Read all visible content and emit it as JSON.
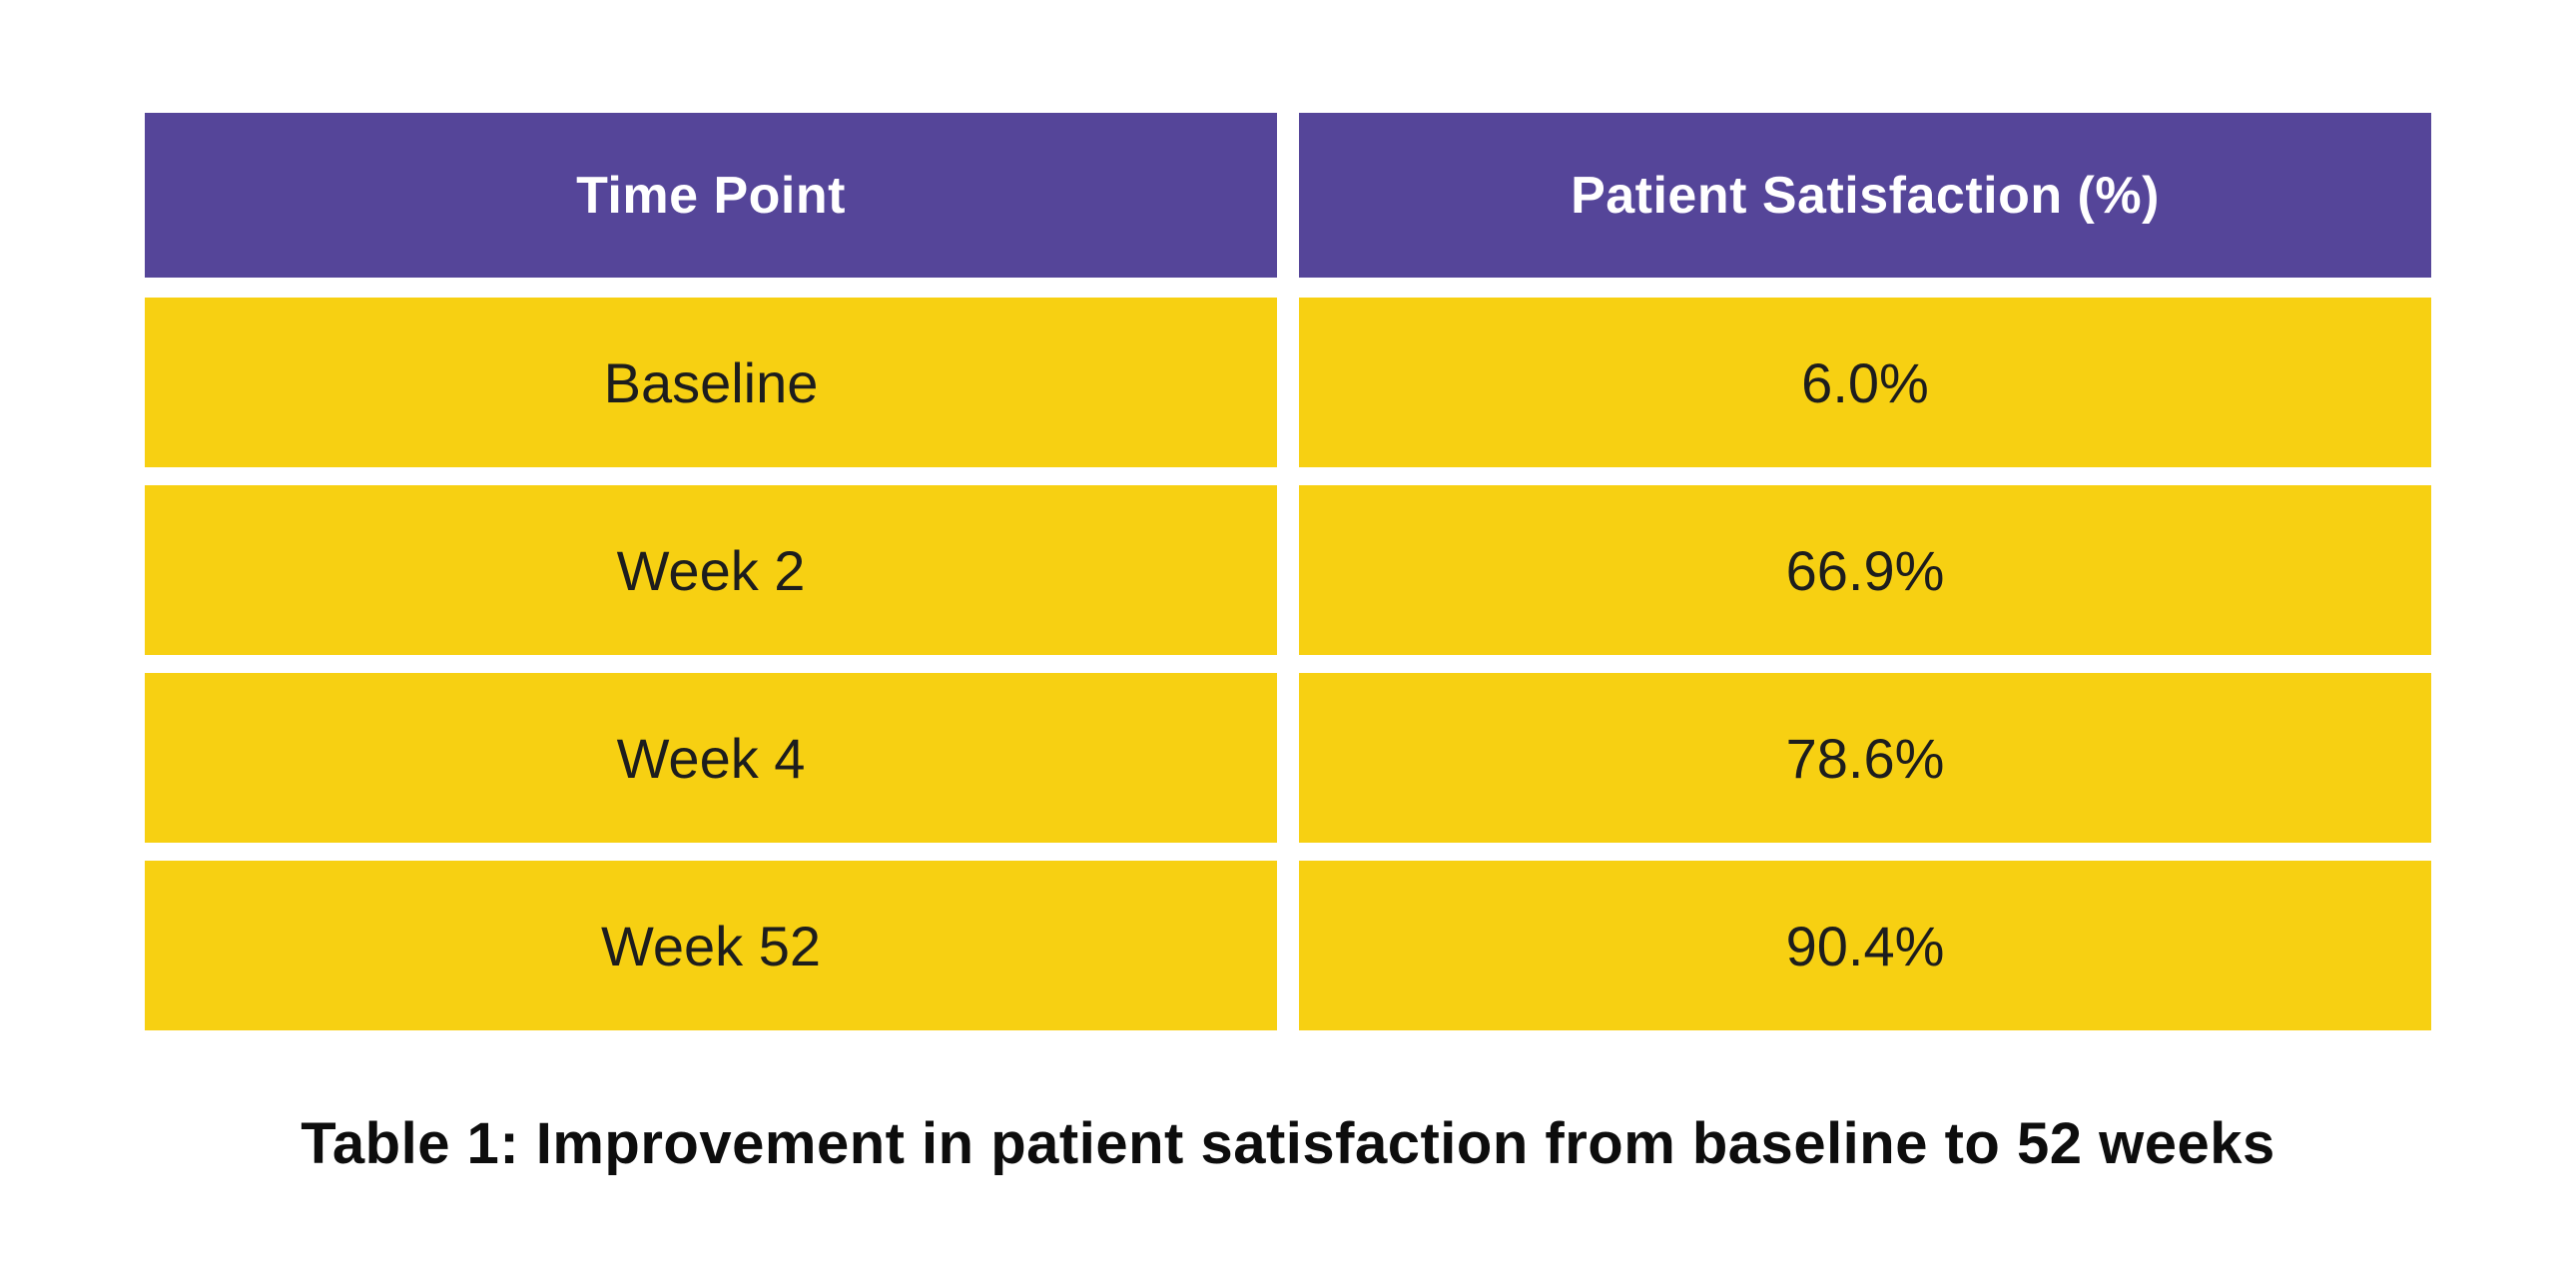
{
  "chart_data": {
    "type": "table",
    "title": "Table 1: Improvement in patient satisfaction from baseline to 52 weeks",
    "columns": [
      "Time Point",
      "Patient Satisfaction (%)"
    ],
    "categories": [
      "Baseline",
      "Week 2",
      "Week 4",
      "Week 52"
    ],
    "values": [
      6.0,
      66.9,
      78.6,
      90.4
    ],
    "rows": [
      [
        "Baseline",
        "6.0%"
      ],
      [
        "Week 2",
        "66.9%"
      ],
      [
        "Week 4",
        "78.6%"
      ],
      [
        "Week 52",
        "90.4%"
      ]
    ]
  },
  "table": {
    "header": {
      "col1": "Time Point",
      "col2": "Patient Satisfaction (%)"
    },
    "rows": [
      {
        "time_point": "Baseline",
        "satisfaction": "6.0%"
      },
      {
        "time_point": "Week 2",
        "satisfaction": "66.9%"
      },
      {
        "time_point": "Week 4",
        "satisfaction": "78.6%"
      },
      {
        "time_point": "Week 52",
        "satisfaction": "90.4%"
      }
    ],
    "caption": "Table 1: Improvement in patient satisfaction from baseline to 52 weeks"
  },
  "colors": {
    "header_bg": "#554599",
    "row_bg": "#F7D012",
    "header_text": "#FFFFFF",
    "cell_text": "#1D1D1D",
    "caption_text": "#0D0D0D",
    "page_bg": "#FFFFFF"
  }
}
